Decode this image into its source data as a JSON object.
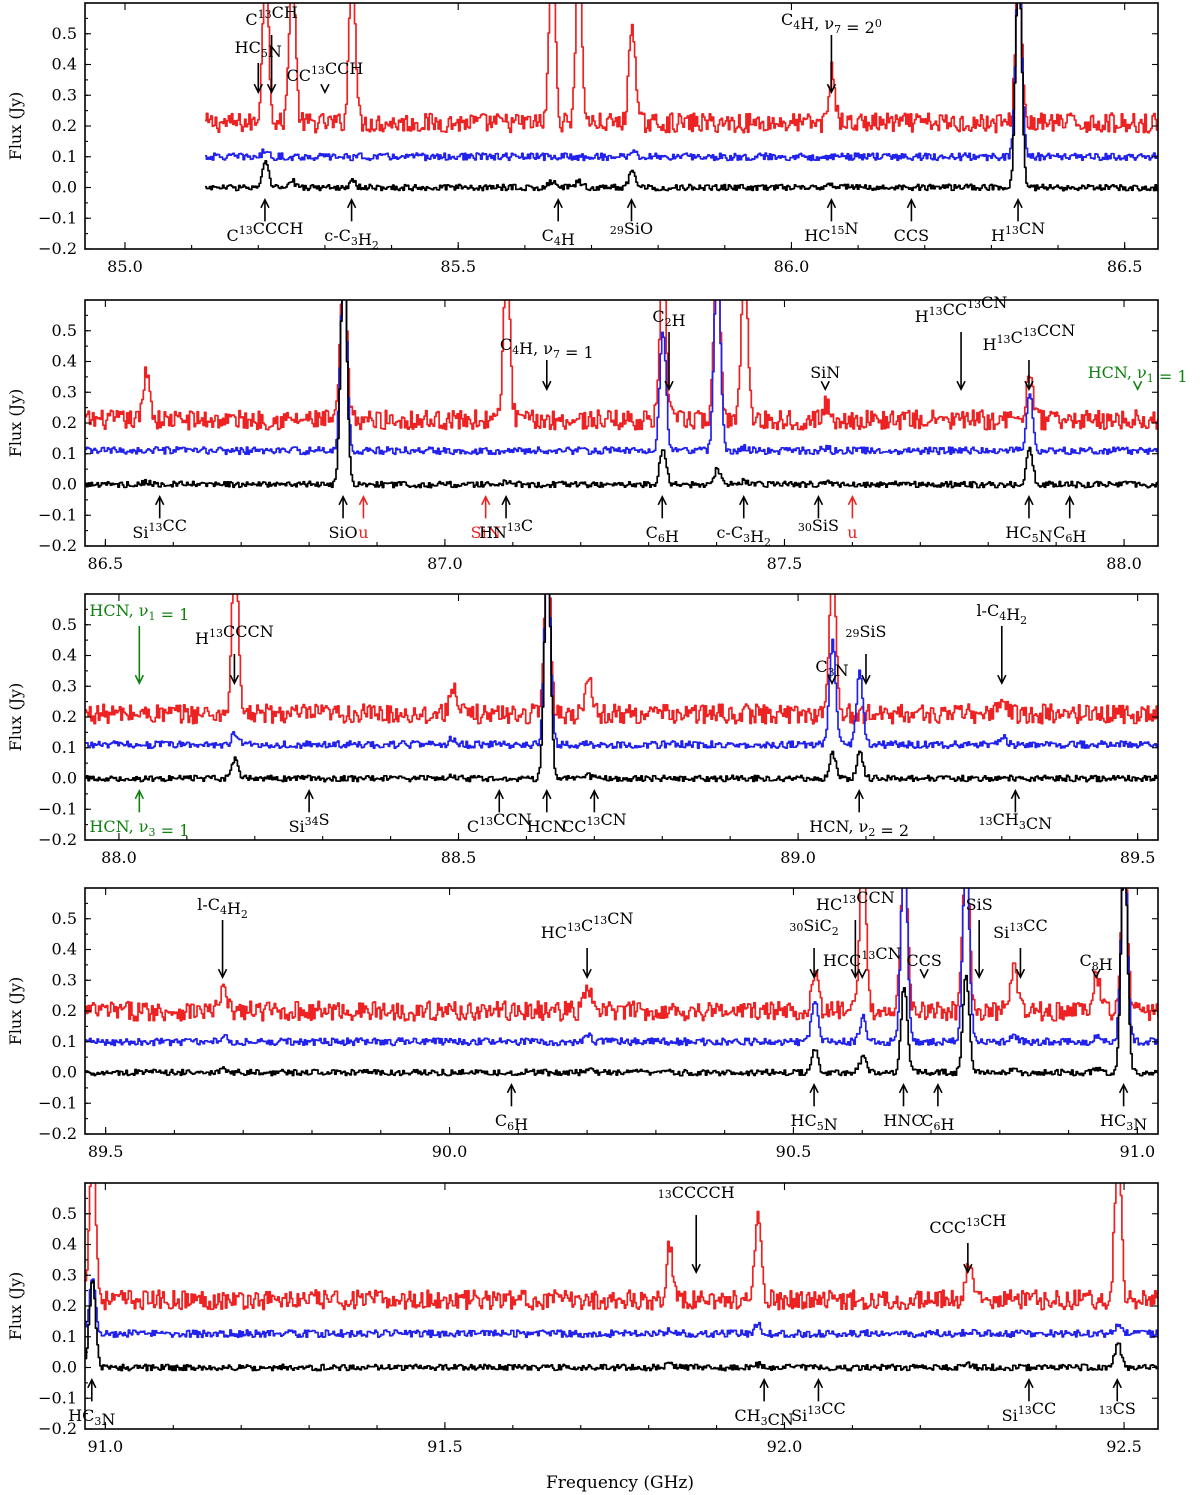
{
  "chart_data": {
    "type": "line",
    "xlabel": "Frequency (GHz)",
    "ylabel": "Flux (Jy)",
    "grid": false,
    "series_styles": [
      {
        "key": "red",
        "color": "#ee2222"
      },
      {
        "key": "blue",
        "color": "#2222ee"
      },
      {
        "key": "black",
        "color": "#000000"
      }
    ],
    "panels": [
      {
        "xlim": [
          84.94,
          86.55
        ],
        "ylim": [
          -0.2,
          0.6
        ],
        "xticks": [
          85.0,
          85.5,
          86.0,
          86.5
        ],
        "xtick_labels": [
          "85.0",
          "85.5",
          "86.0",
          "86.5"
        ],
        "yticks": [
          -0.2,
          -0.1,
          0.0,
          0.1,
          0.2,
          0.3,
          0.4,
          0.5
        ],
        "ytick_labels": [
          "−0.2",
          "−0.1",
          "0.0",
          "0.1",
          "0.2",
          "0.3",
          "0.4",
          "0.5"
        ],
        "data_start": 85.12,
        "red_base": 0.21,
        "blue_base": 0.1,
        "black_base": 0.0,
        "lines": [
          {
            "freq": 85.21,
            "red": 0.75,
            "blue": 0.12,
            "black": 0.08
          },
          {
            "freq": 85.25,
            "red": 0.75,
            "blue": 0.1,
            "black": 0.02
          },
          {
            "freq": 85.34,
            "red": 0.75,
            "blue": 0.1,
            "black": 0.02
          },
          {
            "freq": 85.64,
            "red": 0.75,
            "blue": 0.1,
            "black": 0.02
          },
          {
            "freq": 85.68,
            "red": 0.75,
            "blue": 0.1,
            "black": 0.02
          },
          {
            "freq": 85.76,
            "red": 0.55,
            "blue": 0.12,
            "black": 0.06
          },
          {
            "freq": 86.06,
            "red": 0.38,
            "blue": 0.1,
            "black": 0.01
          },
          {
            "freq": 86.34,
            "red": 0.75,
            "blue": 0.75,
            "black": 0.75
          }
        ],
        "labels": [
          {
            "text": "C13CH",
            "color": "#000",
            "side": "top",
            "freq": 85.22
          },
          {
            "text": "HC5N",
            "color": "#000",
            "side": "top",
            "freq": 85.2
          },
          {
            "text": "CC13CCH",
            "color": "#000",
            "side": "top",
            "freq": 85.3
          },
          {
            "text": "C4H, ν7 = 20",
            "color": "#000",
            "side": "top",
            "freq": 86.06
          },
          {
            "text": "C13CCCH",
            "color": "#000",
            "side": "bottom",
            "freq": 85.21
          },
          {
            "text": "c-C3H2",
            "color": "#000",
            "side": "bottom",
            "freq": 85.34
          },
          {
            "text": "C4H",
            "color": "#000",
            "side": "bottom",
            "freq": 85.65
          },
          {
            "text": "29SiO",
            "color": "#000",
            "side": "bottom",
            "freq": 85.76
          },
          {
            "text": "HC15N",
            "color": "#000",
            "side": "bottom",
            "freq": 86.06
          },
          {
            "text": "CCS",
            "color": "#000",
            "side": "bottom",
            "freq": 86.18
          },
          {
            "text": "H13CN",
            "color": "#000",
            "side": "bottom",
            "freq": 86.34
          }
        ]
      },
      {
        "xlim": [
          86.47,
          88.05
        ],
        "ylim": [
          -0.2,
          0.6
        ],
        "xticks": [
          86.5,
          87.0,
          87.5,
          88.0
        ],
        "xtick_labels": [
          "86.5",
          "87.0",
          "87.5",
          "88.0"
        ],
        "yticks": [
          -0.2,
          -0.1,
          0.0,
          0.1,
          0.2,
          0.3,
          0.4,
          0.5
        ],
        "ytick_labels": [
          "−0.2",
          "−0.1",
          "0.0",
          "0.1",
          "0.2",
          "0.3",
          "0.4",
          "0.5"
        ],
        "data_start": 86.47,
        "red_base": 0.21,
        "blue_base": 0.11,
        "black_base": 0.0,
        "lines": [
          {
            "freq": 86.56,
            "red": 0.38,
            "blue": 0.11,
            "black": 0.01
          },
          {
            "freq": 86.85,
            "red": 0.75,
            "blue": 0.75,
            "black": 0.75
          },
          {
            "freq": 87.09,
            "red": 0.75,
            "blue": 0.11,
            "black": 0.01
          },
          {
            "freq": 87.32,
            "red": 0.75,
            "blue": 0.5,
            "black": 0.12
          },
          {
            "freq": 87.4,
            "red": 0.75,
            "blue": 0.75,
            "black": 0.05
          },
          {
            "freq": 87.44,
            "red": 0.75,
            "blue": 0.12,
            "black": 0.01
          },
          {
            "freq": 87.56,
            "red": 0.26,
            "blue": 0.12,
            "black": 0.01
          },
          {
            "freq": 87.86,
            "red": 0.38,
            "blue": 0.3,
            "black": 0.12
          }
        ],
        "labels": [
          {
            "text": "C2H",
            "color": "#000",
            "side": "top",
            "freq": 87.33
          },
          {
            "text": "C4H, ν7 = 1",
            "color": "#000",
            "side": "top",
            "freq": 87.15
          },
          {
            "text": "SiN",
            "color": "#000",
            "side": "top",
            "freq": 87.56
          },
          {
            "text": "H13CC13CN",
            "color": "#000",
            "side": "top",
            "freq": 87.76
          },
          {
            "text": "H13C13CCN",
            "color": "#000",
            "side": "top",
            "freq": 87.86
          },
          {
            "text": "HCN, ν1 = 1",
            "color": "#108010",
            "side": "top",
            "freq": 88.02
          },
          {
            "text": "Si13CC",
            "color": "#000",
            "side": "bottom",
            "freq": 86.58
          },
          {
            "text": "SiO",
            "color": "#000",
            "side": "bottom",
            "freq": 86.85
          },
          {
            "text": "u",
            "color": "#ee2222",
            "side": "bottom",
            "freq": 86.88
          },
          {
            "text": "SiN",
            "color": "#ee2222",
            "side": "bottom",
            "freq": 87.06
          },
          {
            "text": "HN13C",
            "color": "#000",
            "side": "bottom",
            "freq": 87.09
          },
          {
            "text": "C6H",
            "color": "#000",
            "side": "bottom",
            "freq": 87.32
          },
          {
            "text": "c-C3H2",
            "color": "#000",
            "side": "bottom",
            "freq": 87.44
          },
          {
            "text": "30SiS",
            "color": "#000",
            "side": "bottom",
            "freq": 87.55
          },
          {
            "text": "u",
            "color": "#ee2222",
            "side": "bottom",
            "freq": 87.6
          },
          {
            "text": "HC5N",
            "color": "#000",
            "side": "bottom",
            "freq": 87.86
          },
          {
            "text": "C6H",
            "color": "#000",
            "side": "bottom",
            "freq": 87.92
          }
        ]
      },
      {
        "xlim": [
          87.95,
          89.53
        ],
        "ylim": [
          -0.2,
          0.6
        ],
        "xticks": [
          88.0,
          88.5,
          89.0,
          89.5
        ],
        "xtick_labels": [
          "88.0",
          "88.5",
          "89.0",
          "89.5"
        ],
        "yticks": [
          -0.2,
          -0.1,
          0.0,
          0.1,
          0.2,
          0.3,
          0.4,
          0.5
        ],
        "ytick_labels": [
          "−0.2",
          "−0.1",
          "0.0",
          "0.1",
          "0.2",
          "0.3",
          "0.4",
          "0.5"
        ],
        "data_start": 87.95,
        "red_base": 0.21,
        "blue_base": 0.11,
        "black_base": 0.0,
        "lines": [
          {
            "freq": 88.17,
            "red": 0.75,
            "blue": 0.15,
            "black": 0.06
          },
          {
            "freq": 88.49,
            "red": 0.31,
            "blue": 0.13,
            "black": 0.01
          },
          {
            "freq": 88.63,
            "red": 0.75,
            "blue": 0.75,
            "black": 0.75
          },
          {
            "freq": 88.69,
            "red": 0.35,
            "blue": 0.11,
            "black": 0.01
          },
          {
            "freq": 89.05,
            "red": 0.75,
            "blue": 0.45,
            "black": 0.08
          },
          {
            "freq": 89.09,
            "red": 0.2,
            "blue": 0.35,
            "black": 0.09
          },
          {
            "freq": 89.3,
            "red": 0.28,
            "blue": 0.14,
            "black": 0.01
          }
        ],
        "labels": [
          {
            "text": "HCN, ν1 = 1",
            "color": "#108010",
            "side": "top",
            "freq": 88.03
          },
          {
            "text": "H13CCCN",
            "color": "#000",
            "side": "top",
            "freq": 88.17
          },
          {
            "text": "C3N",
            "color": "#000",
            "side": "top",
            "freq": 89.05
          },
          {
            "text": "l-C4H2",
            "color": "#000",
            "side": "top",
            "freq": 89.3
          },
          {
            "text": "29SiS",
            "color": "#000",
            "side": "top",
            "freq": 89.1
          },
          {
            "text": "HCN, ν3 = 1",
            "color": "#108010",
            "side": "bottom",
            "freq": 88.03
          },
          {
            "text": "Si34S",
            "color": "#000",
            "side": "bottom",
            "freq": 88.28
          },
          {
            "text": "C13CCN",
            "color": "#000",
            "side": "bottom",
            "freq": 88.56
          },
          {
            "text": "HCN",
            "color": "#000",
            "side": "bottom",
            "freq": 88.63
          },
          {
            "text": "CC13CN",
            "color": "#000",
            "side": "bottom",
            "freq": 88.7
          },
          {
            "text": "HCN, ν2 = 2",
            "color": "#000",
            "side": "bottom",
            "freq": 89.09
          },
          {
            "text": "13CH3CN",
            "color": "#000",
            "side": "bottom",
            "freq": 89.32
          }
        ]
      },
      {
        "xlim": [
          89.47,
          91.03
        ],
        "ylim": [
          -0.2,
          0.6
        ],
        "xticks": [
          89.5,
          90.0,
          90.5,
          91.0
        ],
        "xtick_labels": [
          "89.5",
          "90.0",
          "90.5",
          "91.0"
        ],
        "yticks": [
          -0.2,
          -0.1,
          0.0,
          0.1,
          0.2,
          0.3,
          0.4,
          0.5
        ],
        "ytick_labels": [
          "−0.2",
          "−0.1",
          "0.0",
          "0.1",
          "0.2",
          "0.3",
          "0.4",
          "0.5"
        ],
        "data_start": 89.47,
        "red_base": 0.2,
        "blue_base": 0.1,
        "black_base": 0.0,
        "lines": [
          {
            "freq": 89.67,
            "red": 0.27,
            "blue": 0.12,
            "black": 0.01
          },
          {
            "freq": 90.2,
            "red": 0.28,
            "blue": 0.12,
            "black": 0.01
          },
          {
            "freq": 90.53,
            "red": 0.34,
            "blue": 0.24,
            "black": 0.08
          },
          {
            "freq": 90.6,
            "red": 0.75,
            "blue": 0.18,
            "black": 0.05
          },
          {
            "freq": 90.66,
            "red": 0.75,
            "blue": 0.75,
            "black": 0.28
          },
          {
            "freq": 90.75,
            "red": 0.75,
            "blue": 0.75,
            "black": 0.32
          },
          {
            "freq": 90.82,
            "red": 0.35,
            "blue": 0.12,
            "black": 0.01
          },
          {
            "freq": 90.94,
            "red": 0.32,
            "blue": 0.12,
            "black": 0.01
          },
          {
            "freq": 90.98,
            "red": 0.75,
            "blue": 0.75,
            "black": 0.75
          }
        ],
        "labels": [
          {
            "text": "l-C4H2",
            "color": "#000",
            "side": "top",
            "freq": 89.67
          },
          {
            "text": "HC13C13CN",
            "color": "#000",
            "side": "top",
            "freq": 90.2
          },
          {
            "text": "HCC13CN",
            "color": "#000",
            "side": "top",
            "freq": 90.6
          },
          {
            "text": "HC13CCN",
            "color": "#000",
            "side": "top",
            "freq": 90.59
          },
          {
            "text": "30SiC2",
            "color": "#000",
            "side": "top",
            "freq": 90.53
          },
          {
            "text": "CCS",
            "color": "#000",
            "side": "top",
            "freq": 90.69
          },
          {
            "text": "SiS",
            "color": "#000",
            "side": "top",
            "freq": 90.77
          },
          {
            "text": "Si13CC",
            "color": "#000",
            "side": "top",
            "freq": 90.83
          },
          {
            "text": "C8H",
            "color": "#000",
            "side": "top",
            "freq": 90.94
          },
          {
            "text": "C6H",
            "color": "#000",
            "side": "bottom",
            "freq": 90.09
          },
          {
            "text": "HC5N",
            "color": "#000",
            "side": "bottom",
            "freq": 90.53
          },
          {
            "text": "HNC",
            "color": "#000",
            "side": "bottom",
            "freq": 90.66
          },
          {
            "text": "C6H",
            "color": "#000",
            "side": "bottom",
            "freq": 90.71
          },
          {
            "text": "HC3N",
            "color": "#000",
            "side": "bottom",
            "freq": 90.98
          }
        ]
      },
      {
        "xlim": [
          90.97,
          92.55
        ],
        "ylim": [
          -0.2,
          0.6
        ],
        "xticks": [
          91.0,
          91.5,
          92.0,
          92.5
        ],
        "xtick_labels": [
          "91.0",
          "91.5",
          "92.0",
          "92.5"
        ],
        "yticks": [
          -0.2,
          -0.1,
          0.0,
          0.1,
          0.2,
          0.3,
          0.4,
          0.5
        ],
        "ytick_labels": [
          "−0.2",
          "−0.1",
          "0.0",
          "0.1",
          "0.2",
          "0.3",
          "0.4",
          "0.5"
        ],
        "data_start": 90.97,
        "red_base": 0.22,
        "blue_base": 0.11,
        "black_base": 0.0,
        "lines": [
          {
            "freq": 90.98,
            "red": 0.75,
            "blue": 0.3,
            "black": 0.28
          },
          {
            "freq": 91.83,
            "red": 0.4,
            "blue": 0.12,
            "black": 0.01
          },
          {
            "freq": 91.96,
            "red": 0.48,
            "blue": 0.14,
            "black": 0.01
          },
          {
            "freq": 92.27,
            "red": 0.35,
            "blue": 0.12,
            "black": 0.01
          },
          {
            "freq": 92.49,
            "red": 0.75,
            "blue": 0.14,
            "black": 0.08
          }
        ],
        "labels": [
          {
            "text": "13CCCCH",
            "color": "#000",
            "side": "top",
            "freq": 91.87
          },
          {
            "text": "CCC13CH",
            "color": "#000",
            "side": "top",
            "freq": 92.27
          },
          {
            "text": "HC3N",
            "color": "#000",
            "side": "bottom",
            "freq": 90.98
          },
          {
            "text": "CH3CN",
            "color": "#000",
            "side": "bottom",
            "freq": 91.97
          },
          {
            "text": "Si13CC",
            "color": "#000",
            "side": "bottom",
            "freq": 92.05
          },
          {
            "text": "Si13CC",
            "color": "#000",
            "side": "bottom",
            "freq": 92.36
          },
          {
            "text": "13CS",
            "color": "#000",
            "side": "bottom",
            "freq": 92.49
          }
        ]
      }
    ]
  }
}
